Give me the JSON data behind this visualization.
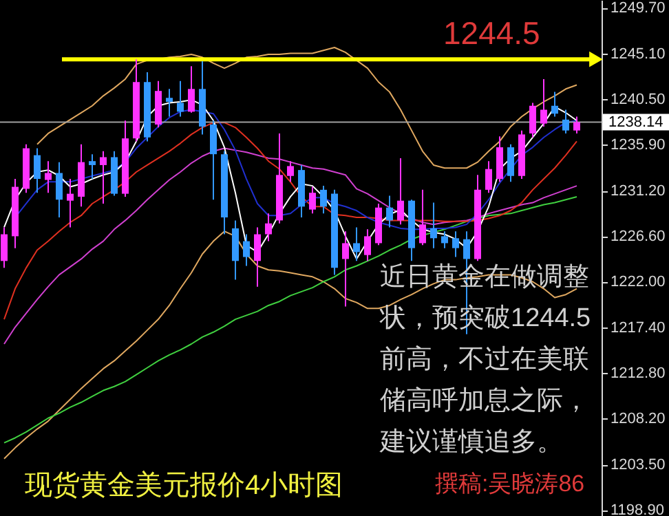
{
  "chart_data": {
    "type": "candlestick",
    "categories": [
      null,
      null,
      null,
      null,
      null,
      null,
      null,
      null,
      null,
      null,
      null,
      null,
      null,
      null,
      null,
      null,
      null,
      null,
      null,
      null,
      null,
      null,
      null,
      null,
      null,
      null,
      null,
      null,
      null,
      null,
      null,
      null,
      null,
      null,
      null,
      null,
      null,
      null,
      null,
      null,
      null,
      null,
      null,
      null,
      null,
      null,
      null,
      null,
      null,
      null,
      null,
      null,
      null
    ],
    "ohlc": [
      [
        1224.1,
        1227.5,
        1223.4,
        1226.8
      ],
      [
        1226.6,
        1232.4,
        1225.4,
        1231.6
      ],
      [
        1231.4,
        1235.9,
        1231.0,
        1235.5
      ],
      [
        1234.8,
        1235.5,
        1231.0,
        1232.4
      ],
      [
        1232.3,
        1234.2,
        1231.0,
        1233.0
      ],
      [
        1233.0,
        1234.1,
        1228.5,
        1230.3
      ],
      [
        1230.2,
        1232.4,
        1227.5,
        1230.9
      ],
      [
        1230.6,
        1235.9,
        1229.6,
        1234.1
      ],
      [
        1234.2,
        1234.9,
        1232.4,
        1233.8
      ],
      [
        1233.8,
        1235.2,
        1229.9,
        1234.6
      ],
      [
        1234.6,
        1235.2,
        1230.7,
        1230.9
      ],
      [
        1230.9,
        1238.3,
        1230.6,
        1236.5
      ],
      [
        1236.5,
        1244.5,
        1236.2,
        1242.2
      ],
      [
        1242.2,
        1243.2,
        1236.2,
        1236.6
      ],
      [
        1237.9,
        1242.3,
        1237.6,
        1241.3
      ],
      [
        1240.6,
        1241.5,
        1238.7,
        1240.2
      ],
      [
        1240.1,
        1242.3,
        1238.7,
        1239.2
      ],
      [
        1239.2,
        1243.8,
        1239.1,
        1241.5
      ],
      [
        1241.5,
        1244.3,
        1236.9,
        1237.7
      ],
      [
        1237.9,
        1238.3,
        1230.3,
        1234.9
      ],
      [
        1234.9,
        1235.2,
        1226.8,
        1228.5
      ],
      [
        1227.4,
        1228.2,
        1222.2,
        1224.1
      ],
      [
        1226.1,
        1226.8,
        1223.6,
        1224.5
      ],
      [
        1224.1,
        1227.5,
        1221.5,
        1226.8
      ],
      [
        1226.8,
        1228.9,
        1226.1,
        1227.9
      ],
      [
        1228.2,
        1237.0,
        1227.9,
        1232.8
      ],
      [
        1232.7,
        1234.2,
        1232.1,
        1233.7
      ],
      [
        1233.3,
        1233.8,
        1228.5,
        1229.6
      ],
      [
        1229.3,
        1231.6,
        1228.9,
        1231.0
      ],
      [
        1231.3,
        1231.7,
        1228.9,
        1229.6
      ],
      [
        1230.9,
        1231.3,
        1222.7,
        1223.4
      ],
      [
        1224.3,
        1227.1,
        1219.5,
        1225.9
      ],
      [
        1225.9,
        1227.5,
        1224.1,
        1225.0
      ],
      [
        1224.7,
        1227.3,
        1224.1,
        1226.6
      ],
      [
        1225.9,
        1229.9,
        1225.7,
        1229.5
      ],
      [
        1229.5,
        1230.7,
        1227.5,
        1228.2
      ],
      [
        1228.2,
        1234.5,
        1227.8,
        1230.2
      ],
      [
        1230.2,
        1230.3,
        1224.1,
        1225.4
      ],
      [
        1225.9,
        1231.3,
        1225.7,
        1227.8
      ],
      [
        1227.4,
        1230.0,
        1225.4,
        1226.4
      ],
      [
        1226.6,
        1227.1,
        1225.4,
        1225.9
      ],
      [
        1226.4,
        1227.1,
        1224.5,
        1225.4
      ],
      [
        1226.3,
        1227.1,
        1216.7,
        1224.3
      ],
      [
        1224.3,
        1232.8,
        1224.1,
        1231.3
      ],
      [
        1231.3,
        1234.2,
        1231.0,
        1233.4
      ],
      [
        1232.4,
        1236.7,
        1232.1,
        1235.6
      ],
      [
        1235.6,
        1235.9,
        1232.1,
        1232.7
      ],
      [
        1232.7,
        1237.3,
        1232.4,
        1236.9
      ],
      [
        1237.0,
        1240.1,
        1236.6,
        1239.8
      ],
      [
        1238.0,
        1242.5,
        1237.7,
        1239.4
      ],
      [
        1239.8,
        1241.2,
        1238.7,
        1239.0
      ],
      [
        1238.4,
        1239.4,
        1237.0,
        1237.3
      ],
      [
        1237.3,
        1238.7,
        1237.0,
        1238.14
      ]
    ],
    "colors": [
      "#ff33ff",
      "#ff33ff",
      "#ff33ff",
      "#3399ff",
      "#ff33ff",
      "#3399ff",
      "#ff33ff",
      "#ff33ff",
      "#3399ff",
      "#ff33ff",
      "#3399ff",
      "#ff33ff",
      "#ff33ff",
      "#3399ff",
      "#ff33ff",
      "#3399ff",
      "#3399ff",
      "#ff33ff",
      "#3399ff",
      "#3399ff",
      "#3399ff",
      "#3399ff",
      "#3399ff",
      "#ff33ff",
      "#ff33ff",
      "#ff33ff",
      "#ff33ff",
      "#3399ff",
      "#ff33ff",
      "#3399ff",
      "#3399ff",
      "#ff33ff",
      "#3399ff",
      "#ff33ff",
      "#ff33ff",
      "#3399ff",
      "#ff33ff",
      "#3399ff",
      "#ff33ff",
      "#3399ff",
      "#3399ff",
      "#3399ff",
      "#3399ff",
      "#ff33ff",
      "#ff33ff",
      "#ff33ff",
      "#3399ff",
      "#ff33ff",
      "#ff33ff",
      "#ff33ff",
      "#3399ff",
      "#3399ff",
      "#ff33ff"
    ],
    "series": [
      {
        "type": "line",
        "color": "#e0a860",
        "values": [
          null,
          null,
          null,
          1235.9,
          1237.0,
          1237.7,
          1238.4,
          1239.1,
          1239.8,
          1240.8,
          1241.6,
          1242.5,
          1244.0,
          1244.4,
          1244.5,
          1244.7,
          1244.8,
          1245.0,
          1244.7,
          1244.1,
          1243.6,
          1244.1,
          1244.7,
          1244.8,
          1245.0,
          1245.0,
          1245.1,
          1245.1,
          1245.1,
          1245.4,
          1245.7,
          1245.2,
          1244.4,
          1243.6,
          1242.2,
          1241.2,
          1239.4,
          1237.3,
          1235.2,
          1233.8,
          1233.5,
          1233.5,
          1233.5,
          1234.1,
          1235.2,
          1236.2,
          1237.7,
          1238.7,
          1239.5,
          1240.2,
          1240.8,
          1241.5,
          1241.9
        ]
      },
      {
        "type": "line",
        "color": "#e0a860",
        "values": [
          1204.1,
          1205.2,
          1206.2,
          1207.1,
          1207.9,
          1209.0,
          1210.1,
          1211.2,
          1212.2,
          1213.2,
          1214.0,
          1215.0,
          1216.0,
          1217.1,
          1218.2,
          1219.6,
          1221.3,
          1222.9,
          1224.8,
          1226.1,
          1227.1,
          1226.6,
          1224.8,
          1223.6,
          1223.2,
          1223.1,
          1222.9,
          1222.7,
          1222.5,
          1222.0,
          1221.3,
          1220.3,
          1219.9,
          1219.3,
          1219.3,
          1219.6,
          1220.2,
          1220.7,
          1221.3,
          1221.8,
          1222.2,
          1222.2,
          1222.4,
          1222.5,
          1222.7,
          1222.7,
          1222.7,
          1222.4,
          1222.0,
          1221.3,
          1220.4,
          1220.7,
          1221.3
        ]
      },
      {
        "type": "line",
        "color": "#40d040",
        "values": [
          1205.7,
          1206.2,
          1206.8,
          1207.5,
          1208.2,
          1208.7,
          1209.3,
          1209.8,
          1210.4,
          1211.0,
          1211.4,
          1211.9,
          1212.6,
          1213.3,
          1214.0,
          1214.6,
          1215.1,
          1215.7,
          1216.4,
          1216.9,
          1217.5,
          1218.2,
          1218.6,
          1219.0,
          1219.6,
          1220.0,
          1220.6,
          1221.0,
          1221.4,
          1222.0,
          1222.5,
          1223.2,
          1223.6,
          1224.1,
          1224.6,
          1225.2,
          1225.7,
          1226.3,
          1226.7,
          1227.0,
          1227.3,
          1227.7,
          1228.1,
          1228.4,
          1228.7,
          1228.8,
          1228.9,
          1229.2,
          1229.5,
          1229.8,
          1230.0,
          1230.3,
          1230.6
        ]
      },
      {
        "type": "line",
        "color": "#d040d0",
        "values": [
          1215.7,
          1217.4,
          1218.8,
          1220.2,
          1221.5,
          1222.7,
          1223.5,
          1224.3,
          1225.3,
          1226.1,
          1227.3,
          1228.2,
          1229.2,
          1230.3,
          1231.3,
          1232.3,
          1233.1,
          1234.0,
          1234.7,
          1235.2,
          1235.5,
          1235.3,
          1235.1,
          1234.8,
          1234.5,
          1234.4,
          1234.1,
          1233.8,
          1233.5,
          1233.4,
          1233.1,
          1232.8,
          1231.4,
          1230.9,
          1230.2,
          1229.5,
          1228.9,
          1228.4,
          1228.0,
          1227.8,
          1228.0,
          1228.1,
          1228.2,
          1228.5,
          1228.9,
          1229.2,
          1229.5,
          1229.8,
          1230.0,
          1230.5,
          1230.9,
          1231.3,
          1231.7
        ]
      },
      {
        "type": "line",
        "color": "#e03020",
        "values": [
          1218.2,
          1221.3,
          1223.4,
          1225.2,
          1226.1,
          1227.1,
          1228.0,
          1228.7,
          1229.9,
          1230.6,
          1231.3,
          1232.1,
          1233.1,
          1233.8,
          1234.5,
          1235.2,
          1236.0,
          1236.9,
          1237.6,
          1238.1,
          1238.1,
          1237.6,
          1236.6,
          1235.5,
          1234.2,
          1233.4,
          1232.1,
          1230.6,
          1229.6,
          1229.6,
          1228.8,
          1228.7,
          1228.5,
          1228.5,
          1228.4,
          1228.2,
          1228.2,
          1228.2,
          1228.2,
          1228.2,
          1228.1,
          1228.1,
          1228.1,
          1228.2,
          1228.4,
          1228.7,
          1229.2,
          1230.0,
          1231.3,
          1232.4,
          1233.5,
          1234.8,
          1236.2
        ]
      },
      {
        "type": "line",
        "color": "#2030d0",
        "values": [
          null,
          1228.5,
          1229.9,
          1231.3,
          1232.1,
          1232.1,
          1232.1,
          1232.4,
          1232.7,
          1233.0,
          1233.3,
          1234.1,
          1235.5,
          1236.6,
          1237.7,
          1238.6,
          1239.2,
          1239.4,
          1239.2,
          1239.0,
          1237.4,
          1235.3,
          1232.4,
          1229.9,
          1228.7,
          1228.7,
          1228.9,
          1229.8,
          1230.5,
          1230.5,
          1229.9,
          1229.6,
          1229.2,
          1228.5,
          1228.0,
          1227.7,
          1227.4,
          1227.3,
          1227.3,
          1227.4,
          1227.4,
          1227.5,
          1227.8,
          1228.9,
          1230.3,
          1232.0,
          1233.4,
          1234.8,
          1235.6,
          1236.6,
          1237.4,
          1238.1,
          1238.3
        ]
      },
      {
        "type": "line",
        "color": "#ffffff",
        "values": [
          1227.5,
          1230.3,
          1232.0,
          1233.1,
          1233.3,
          1232.7,
          1231.6,
          1231.9,
          1232.4,
          1232.8,
          1233.1,
          1234.1,
          1236.2,
          1238.7,
          1239.8,
          1240.1,
          1240.2,
          1240.4,
          1239.9,
          1238.3,
          1235.6,
          1231.0,
          1225.7,
          1225.0,
          1226.8,
          1228.9,
          1230.6,
          1231.9,
          1231.7,
          1230.6,
          1229.2,
          1226.6,
          1224.3,
          1226.1,
          1227.8,
          1228.8,
          1229.3,
          1228.2,
          1227.3,
          1227.0,
          1226.8,
          1226.3,
          1225.4,
          1227.1,
          1229.6,
          1233.4,
          1234.5,
          1235.2,
          1236.6,
          1238.0,
          1239.7,
          1239.1,
          1238.3
        ]
      }
    ],
    "ylim": [
      1198.3,
      1250.5
    ],
    "yticks": [
      {
        "value": 1198.9,
        "label": "1198.90"
      },
      {
        "value": 1203.5,
        "label": "1203.50"
      },
      {
        "value": 1208.2,
        "label": "1208.20"
      },
      {
        "value": 1212.8,
        "label": "1212.80"
      },
      {
        "value": 1217.4,
        "label": "1217.40"
      },
      {
        "value": 1222.0,
        "label": "1222.00"
      },
      {
        "value": 1226.6,
        "label": "1226.60"
      },
      {
        "value": 1231.2,
        "label": "1231.20"
      },
      {
        "value": 1235.9,
        "label": "1235.90"
      },
      {
        "value": 1240.5,
        "label": "1240.50"
      },
      {
        "value": 1245.1,
        "label": "1245.10"
      },
      {
        "value": 1249.7,
        "label": "1249.70"
      }
    ],
    "tick_labels": "y",
    "ref_lines": [
      {
        "axis": "y",
        "value": 1244.5,
        "label": "1244.5",
        "color": "#ffff00"
      },
      {
        "axis": "y",
        "value": 1238.14,
        "label": "1238.14",
        "color": "#a0a0a0"
      }
    ],
    "annotations": [
      "近日黄金在做调整状，预突破1244.5前高，不过在美联储高呼加息之际，建议谨慎追多。",
      "现货黄金美元报价4小时图",
      "撰稿:吴晓涛86"
    ]
  }
}
